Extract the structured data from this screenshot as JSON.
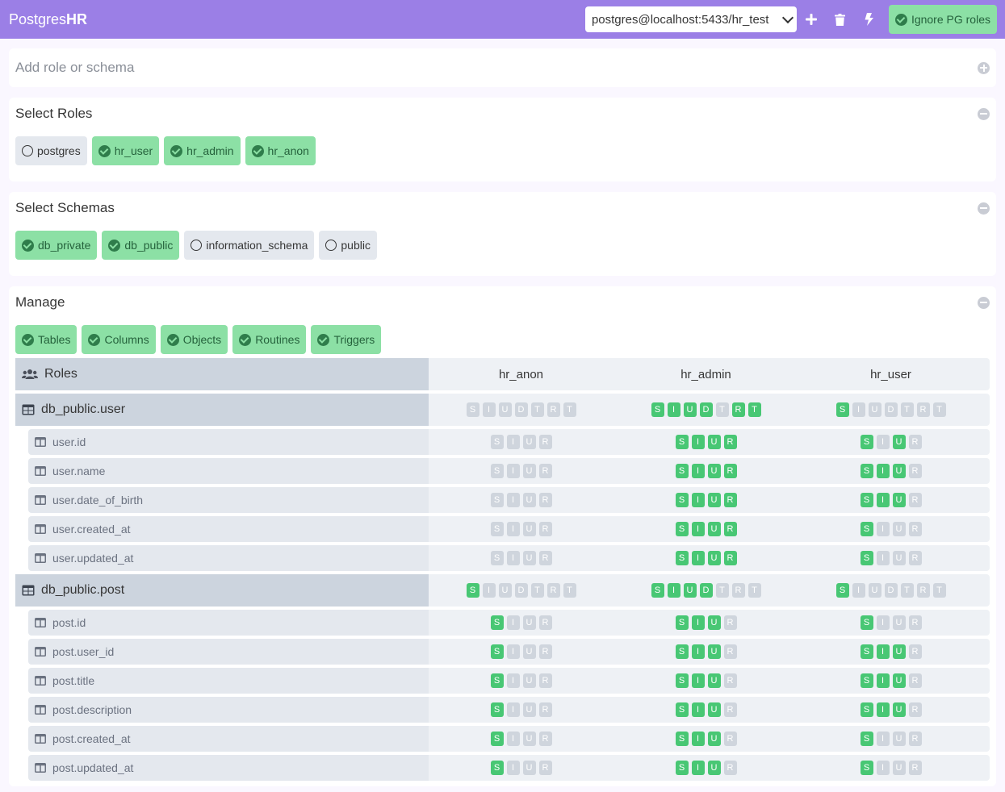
{
  "brand": {
    "prefix": "Postgres",
    "suffix": "HR"
  },
  "connection": {
    "value": "postgres@localhost:5433/hr_test"
  },
  "ignore_button": {
    "label": "Ignore PG roles"
  },
  "add_card": {
    "placeholder": "Add role or schema"
  },
  "roles_card": {
    "title": "Select Roles",
    "items": [
      {
        "label": "postgres",
        "checked": false
      },
      {
        "label": "hr_user",
        "checked": true
      },
      {
        "label": "hr_admin",
        "checked": true
      },
      {
        "label": "hr_anon",
        "checked": true
      }
    ]
  },
  "schemas_card": {
    "title": "Select Schemas",
    "items": [
      {
        "label": "db_private",
        "checked": true
      },
      {
        "label": "db_public",
        "checked": true
      },
      {
        "label": "information_schema",
        "checked": false
      },
      {
        "label": "public",
        "checked": false
      }
    ]
  },
  "manage_card": {
    "title": "Manage",
    "toggles": [
      "Tables",
      "Columns",
      "Objects",
      "Routines",
      "Triggers"
    ]
  },
  "matrix": {
    "header_label": "Roles",
    "roles": [
      "hr_anon",
      "hr_admin",
      "hr_user"
    ],
    "table_letters": [
      "S",
      "I",
      "U",
      "D",
      "T",
      "R",
      "T"
    ],
    "column_letters": [
      "S",
      "I",
      "U",
      "R"
    ],
    "rows": [
      {
        "kind": "table",
        "name": "db_public.user",
        "perms": [
          [
            0,
            0,
            0,
            0,
            0,
            0,
            0
          ],
          [
            1,
            1,
            1,
            1,
            0,
            1,
            1
          ],
          [
            1,
            0,
            0,
            0,
            0,
            0,
            0
          ]
        ]
      },
      {
        "kind": "column",
        "name": "user.id",
        "perms": [
          [
            0,
            0,
            0,
            0
          ],
          [
            1,
            1,
            1,
            1
          ],
          [
            1,
            0,
            1,
            0
          ]
        ]
      },
      {
        "kind": "column",
        "name": "user.name",
        "perms": [
          [
            0,
            0,
            0,
            0
          ],
          [
            1,
            1,
            1,
            1
          ],
          [
            1,
            1,
            1,
            0
          ]
        ]
      },
      {
        "kind": "column",
        "name": "user.date_of_birth",
        "perms": [
          [
            0,
            0,
            0,
            0
          ],
          [
            1,
            1,
            1,
            1
          ],
          [
            1,
            1,
            1,
            0
          ]
        ]
      },
      {
        "kind": "column",
        "name": "user.created_at",
        "perms": [
          [
            0,
            0,
            0,
            0
          ],
          [
            1,
            1,
            1,
            1
          ],
          [
            1,
            0,
            0,
            0
          ]
        ]
      },
      {
        "kind": "column",
        "name": "user.updated_at",
        "perms": [
          [
            0,
            0,
            0,
            0
          ],
          [
            1,
            1,
            1,
            1
          ],
          [
            1,
            0,
            0,
            0
          ]
        ]
      },
      {
        "kind": "table",
        "name": "db_public.post",
        "perms": [
          [
            1,
            0,
            0,
            0,
            0,
            0,
            0
          ],
          [
            1,
            1,
            1,
            1,
            0,
            0,
            0
          ],
          [
            1,
            0,
            0,
            0,
            0,
            0,
            0
          ]
        ]
      },
      {
        "kind": "column",
        "name": "post.id",
        "perms": [
          [
            1,
            0,
            0,
            0
          ],
          [
            1,
            1,
            1,
            0
          ],
          [
            1,
            0,
            0,
            0
          ]
        ]
      },
      {
        "kind": "column",
        "name": "post.user_id",
        "perms": [
          [
            1,
            0,
            0,
            0
          ],
          [
            1,
            1,
            1,
            0
          ],
          [
            1,
            1,
            1,
            0
          ]
        ]
      },
      {
        "kind": "column",
        "name": "post.title",
        "perms": [
          [
            1,
            0,
            0,
            0
          ],
          [
            1,
            1,
            1,
            0
          ],
          [
            1,
            1,
            1,
            0
          ]
        ]
      },
      {
        "kind": "column",
        "name": "post.description",
        "perms": [
          [
            1,
            0,
            0,
            0
          ],
          [
            1,
            1,
            1,
            0
          ],
          [
            1,
            1,
            1,
            0
          ]
        ]
      },
      {
        "kind": "column",
        "name": "post.created_at",
        "perms": [
          [
            1,
            0,
            0,
            0
          ],
          [
            1,
            1,
            1,
            0
          ],
          [
            1,
            0,
            0,
            0
          ]
        ]
      },
      {
        "kind": "column",
        "name": "post.updated_at",
        "perms": [
          [
            1,
            0,
            0,
            0
          ],
          [
            1,
            1,
            1,
            0
          ],
          [
            1,
            0,
            0,
            0
          ]
        ]
      }
    ]
  },
  "colors": {
    "navbar": "#9b7fe6",
    "green": "#48c774",
    "green_tag": "#8ce0a5",
    "gray_tag": "#e4e8ee"
  }
}
